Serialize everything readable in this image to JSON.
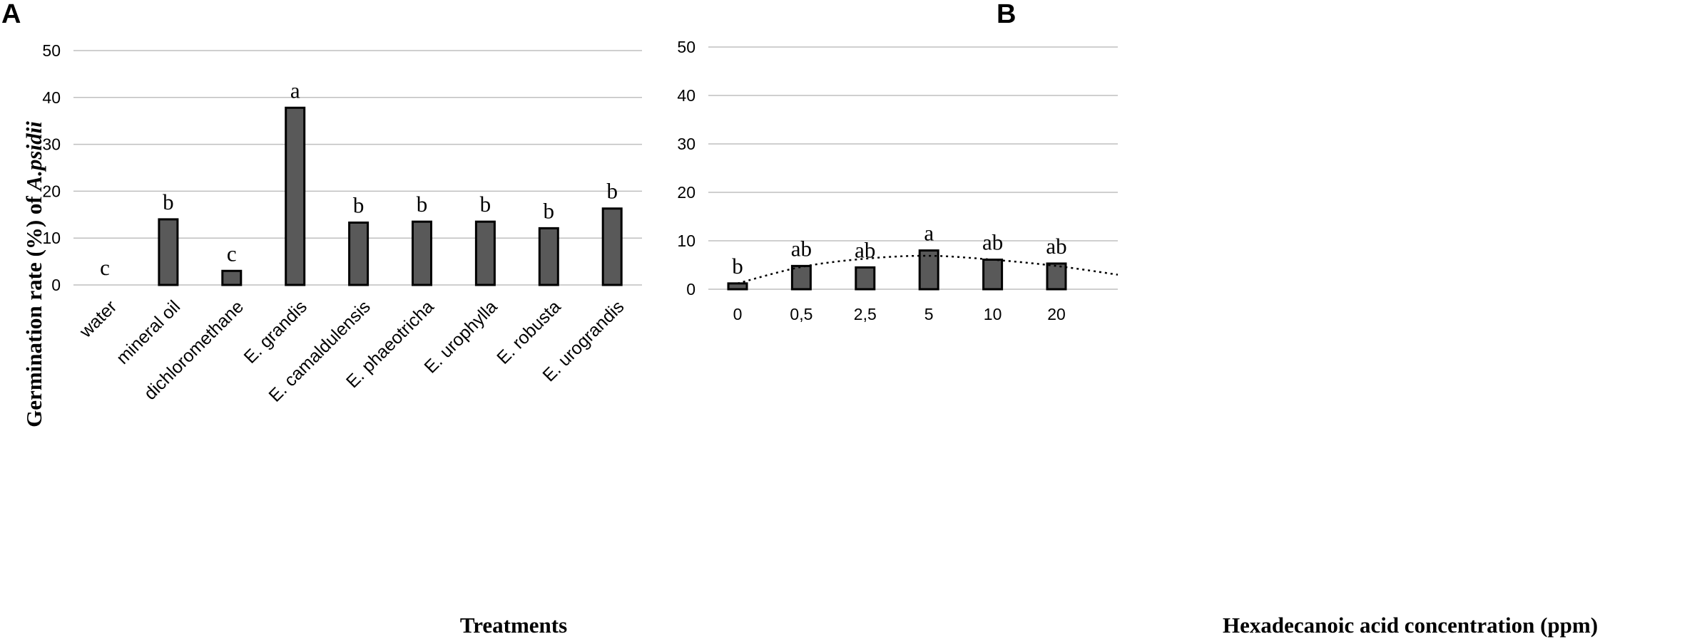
{
  "chart_data": [
    {
      "panel": "A",
      "type": "bar",
      "title": "",
      "xlabel": "Treatments",
      "ylabel_prefix": "Germination rate (%) of ",
      "ylabel_species": "A.psidii",
      "ylim": [
        0,
        50
      ],
      "yticks": [
        0,
        10,
        20,
        30,
        40,
        50
      ],
      "grid": true,
      "categories": [
        "water",
        "mineral oil",
        "dichloromethane",
        "E. grandis",
        "E. camaldulensis",
        "E. phaeotricha",
        "E. urophylla",
        "E. robusta",
        "E. urograndis"
      ],
      "values": [
        0,
        14,
        3,
        37.8,
        13.3,
        13.5,
        13.5,
        12.1,
        16.3
      ],
      "labels": [
        "c",
        "b",
        "c",
        "a",
        "b",
        "b",
        "b",
        "b",
        "b"
      ]
    },
    {
      "panel": "B",
      "type": "bar",
      "title": "",
      "xlabel": "Hexadecanoic acid concentration (ppm)",
      "ylabel": "",
      "ylim": [
        0,
        50
      ],
      "yticks": [
        0,
        10,
        20,
        30,
        40,
        50
      ],
      "grid": true,
      "categories": [
        "0",
        "0,5",
        "2,5",
        "5",
        "10",
        "20"
      ],
      "values": [
        1.2,
        4.8,
        4.5,
        8.0,
        6.1,
        5.3
      ],
      "labels": [
        "b",
        "ab",
        "ab",
        "a",
        "ab",
        "ab"
      ],
      "trendline": {
        "type": "polynomial",
        "style": "dotted",
        "values_at_categories": [
          1.2,
          4.6,
          6.3,
          6.9,
          6.1,
          4.8
        ],
        "end_value": 3.0
      }
    }
  ]
}
